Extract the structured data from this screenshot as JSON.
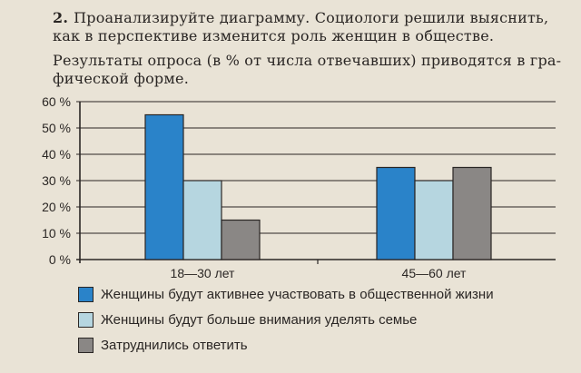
{
  "task": {
    "number": "2.",
    "line1": "Проанализируйте диаграмму. Социологи решили выяснить,",
    "line2": "как в перспективе изменится роль женщин в обществе.",
    "line3": "Результаты опроса (в % от числа отвечавших) приводятся в гра-",
    "line4": "фической форме."
  },
  "colors": {
    "series": [
      "#2a83c9",
      "#b6d6e0",
      "#8a8785"
    ],
    "axis": "#2a2624",
    "grid": "#2a2624"
  },
  "chart_data": {
    "type": "bar",
    "categories": [
      "18—30 лет",
      "45—60 лет"
    ],
    "ylim": [
      0,
      60
    ],
    "yticks": [
      "0 %",
      "10 %",
      "20 %",
      "30 %",
      "40 %",
      "50 %",
      "60 %"
    ],
    "grid": true,
    "legend_position": "bottom",
    "series": [
      {
        "name": "Женщины будут активнее участвовать в общественной жизни",
        "values": [
          55,
          35
        ]
      },
      {
        "name": "Женщины будут больше внимания уделять семье",
        "values": [
          30,
          30
        ]
      },
      {
        "name": "Затруднились ответить",
        "values": [
          15,
          35
        ]
      }
    ]
  }
}
